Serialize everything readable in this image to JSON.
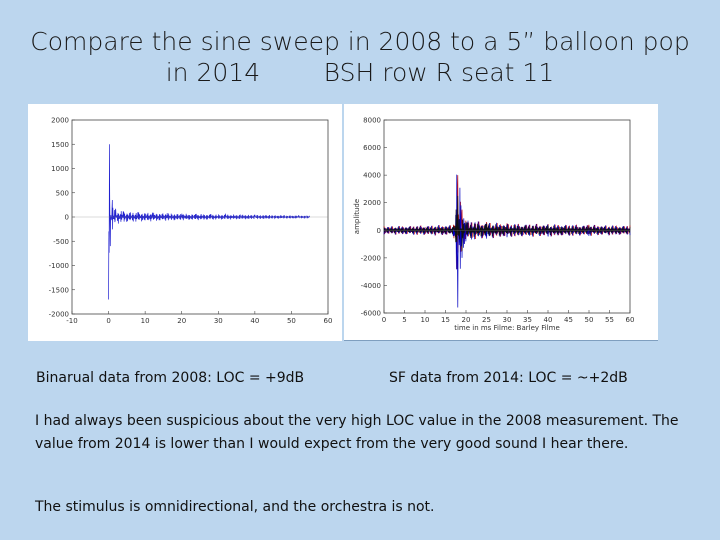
{
  "slide": {
    "title_line1": "Compare the sine sweep in 2008 to a 5” balloon pop",
    "title_line2": "in 2014        BSH row R seat 11",
    "caption_left": "Binarual data from 2008: LOC = +9dB",
    "caption_right": "SF data from 2014: LOC = ~+2dB",
    "paragraph1": "I had always been suspicious about the very high LOC value in the 2008 measurement. The value from 2014 is lower than I would expect from the very good sound I hear there.",
    "paragraph2": "The stimulus is omnidirectional, and the orchestra is not."
  },
  "chart_data": [
    {
      "type": "line",
      "title": "",
      "xlabel": "",
      "ylabel": "",
      "xlim": [
        -10,
        60
      ],
      "ylim": [
        -2000,
        2000
      ],
      "xticks": [
        "-10",
        "0",
        "10",
        "20",
        "30",
        "40",
        "50",
        "60"
      ],
      "yticks": [
        "2000",
        "1500",
        "1000",
        "500",
        "0",
        "-500",
        "-1000",
        "-1500",
        "-2000"
      ],
      "grid": false,
      "series": [
        {
          "color": "#2020d0",
          "x": [
            0,
            0.2,
            0.5,
            1,
            2,
            4,
            8,
            12,
            16,
            20,
            24,
            28,
            32,
            36,
            40,
            44,
            48,
            52,
            55
          ],
          "y": [
            -1700,
            1500,
            -600,
            350,
            150,
            120,
            100,
            90,
            80,
            70,
            65,
            60,
            55,
            50,
            45,
            40,
            35,
            30,
            25
          ]
        }
      ]
    },
    {
      "type": "line",
      "title": "",
      "xlabel": "time in ms Filme: Barley Filme",
      "ylabel": "amplitude",
      "xlim": [
        0,
        60
      ],
      "ylim": [
        -6000,
        8000
      ],
      "xticks": [
        "0",
        "5",
        "10",
        "15",
        "20",
        "25",
        "30",
        "35",
        "40",
        "45",
        "50",
        "55",
        "60"
      ],
      "yticks": [
        "8000",
        "6000",
        "4000",
        "2000",
        "0",
        "-2000",
        "-4000",
        "-6000"
      ],
      "grid": false,
      "series": [
        {
          "color": "#c00000",
          "x": [
            0,
            17,
            18,
            19,
            20,
            25,
            30,
            40,
            50,
            60
          ],
          "y": [
            300,
            400,
            4000,
            1500,
            700,
            600,
            500,
            450,
            400,
            350
          ]
        },
        {
          "color": "#0000c0",
          "x": [
            0,
            17,
            18,
            19,
            20,
            25,
            30,
            40,
            50,
            60
          ],
          "y": [
            -300,
            -400,
            -5600,
            -2000,
            -800,
            -600,
            -500,
            -450,
            -400,
            -350
          ]
        },
        {
          "color": "#111111",
          "x": [
            0,
            17,
            18,
            19,
            20,
            25,
            30,
            40,
            50,
            60
          ],
          "y": [
            200,
            300,
            2500,
            -1500,
            600,
            500,
            400,
            350,
            300,
            250
          ]
        }
      ]
    }
  ]
}
